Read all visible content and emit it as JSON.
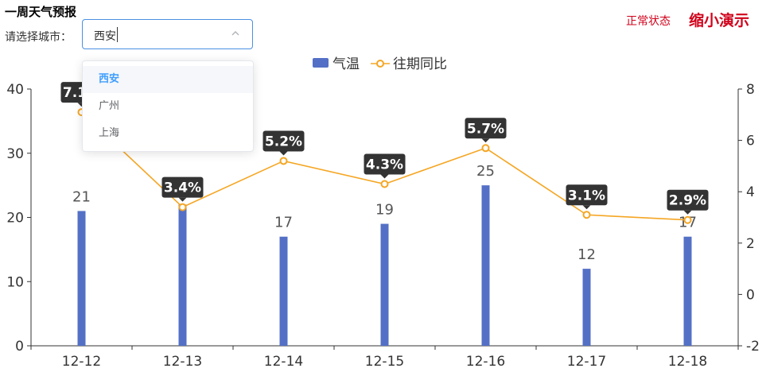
{
  "header": {
    "title": "一周天气预报",
    "city_label": "请选择城市：",
    "status_text": "正常状态",
    "demo_button": "缩小演示"
  },
  "city_select": {
    "value": "西安",
    "options": [
      "西安",
      "广州",
      "上海"
    ],
    "selected_index": 0
  },
  "colors": {
    "bar": "#5470c6",
    "line": "#f5a623",
    "accent": "#d0021b",
    "select_border": "#4a90e2"
  },
  "chart_data": {
    "type": "bar",
    "categories": [
      "12-12",
      "12-13",
      "12-14",
      "12-15",
      "12-16",
      "12-17",
      "12-18"
    ],
    "series": [
      {
        "name": "气温",
        "type": "bar",
        "axis": "left",
        "values": [
          21,
          22,
          17,
          19,
          25,
          12,
          17
        ]
      },
      {
        "name": "往期同比",
        "type": "line",
        "axis": "right",
        "values": [
          7.1,
          3.4,
          5.2,
          4.3,
          5.7,
          3.1,
          2.9
        ],
        "labels": [
          "7.1%",
          "3.4%",
          "5.2%",
          "4.3%",
          "5.7%",
          "3.1%",
          "2.9%"
        ]
      }
    ],
    "y_left": {
      "ylim": [
        0,
        40
      ],
      "ticks": [
        "0",
        "10",
        "20",
        "30",
        "40"
      ]
    },
    "y_right": {
      "ylim": [
        -2,
        8
      ],
      "ticks": [
        "-2",
        "0",
        "2",
        "4",
        "6",
        "8"
      ]
    },
    "legend": "top-center",
    "grid": false
  }
}
